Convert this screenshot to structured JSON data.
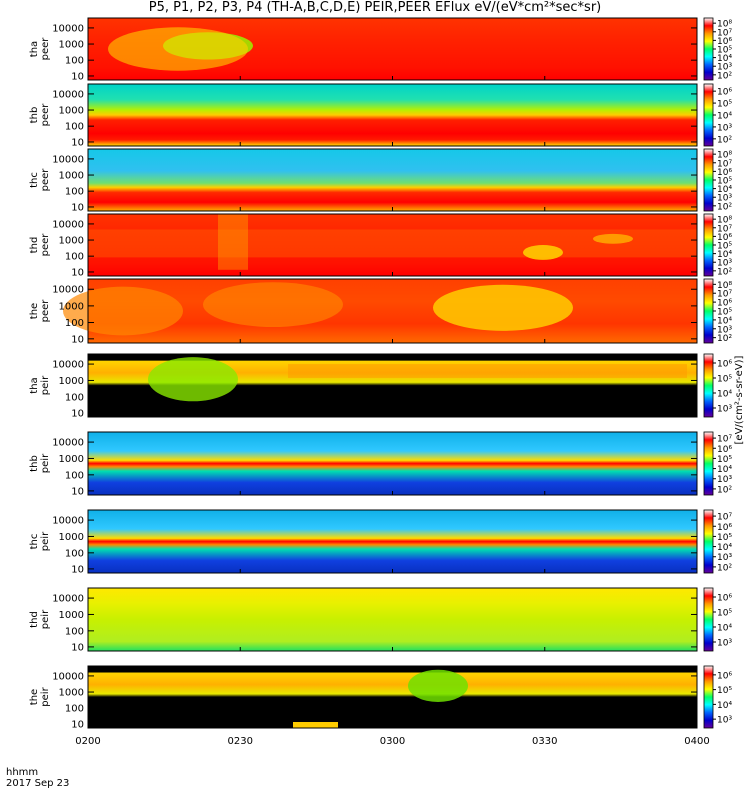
{
  "title": "P5, P1, P2, P3, P4 (TH-A,B,C,D,E) PEIR,PEER EFlux eV/(eV*cm²*sec*sr)",
  "footer": {
    "label": "hhmm",
    "date": "2017 Sep 23"
  },
  "colorbar_label": "[eV/(cm²-s-sr-eV)]",
  "colors": {
    "scale": [
      "#ffffff",
      "#ff0000",
      "#ff9900",
      "#ffff00",
      "#00ff66",
      "#00ffff",
      "#0066ff",
      "#0000cc",
      "#660099"
    ],
    "fill": "#000000"
  },
  "chart_data": {
    "type": "heatmap",
    "xlabel": "hhmm",
    "x_ticks": [
      "0200",
      "0230",
      "0300",
      "0330",
      "0400"
    ],
    "x_range": [
      "02:00",
      "04:00"
    ],
    "y_scale": "log",
    "y_ticks": [
      "10",
      "100",
      "1000",
      "10000"
    ],
    "ylim": [
      7,
      20000
    ],
    "colorbar_scale": "log",
    "panels": [
      {
        "name": "tha peer",
        "label_top": "tha",
        "label_bottom": "peer",
        "species": "electron",
        "cbar_ticks": [
          "10²",
          "10³",
          "10⁴",
          "10⁵",
          "10⁶",
          "10⁷",
          "10⁸"
        ],
        "style": "e-red",
        "feature": "green-blob"
      },
      {
        "name": "thb peer",
        "label_top": "thb",
        "label_bottom": "peer",
        "species": "electron",
        "cbar_ticks": [
          "10²",
          "10³",
          "10⁴",
          "10⁵",
          "10⁶"
        ],
        "style": "e-band",
        "feature": ""
      },
      {
        "name": "thc peer",
        "label_top": "thc",
        "label_bottom": "peer",
        "species": "electron",
        "cbar_ticks": [
          "10²",
          "10³",
          "10⁴",
          "10⁵",
          "10⁶",
          "10⁷",
          "10⁸"
        ],
        "style": "e-band2",
        "feature": ""
      },
      {
        "name": "thd peer",
        "label_top": "thd",
        "label_bottom": "peer",
        "species": "electron",
        "cbar_ticks": [
          "10²",
          "10³",
          "10⁴",
          "10⁵",
          "10⁶",
          "10⁷",
          "10⁸"
        ],
        "style": "e-red",
        "feature": "striations"
      },
      {
        "name": "the peer",
        "label_top": "the",
        "label_bottom": "peer",
        "species": "electron",
        "cbar_ticks": [
          "10²",
          "10³",
          "10⁴",
          "10⁵",
          "10⁶",
          "10⁷",
          "10⁸"
        ],
        "style": "e-orange",
        "feature": "yellow-blobs"
      },
      {
        "name": "tha peir",
        "label_top": "tha",
        "label_bottom": "peir",
        "species": "ion",
        "cbar_ticks": [
          "10³",
          "10⁴",
          "10⁵",
          "10⁶"
        ],
        "style": "i-black",
        "feature": "green-burst"
      },
      {
        "name": "thb peir",
        "label_top": "thb",
        "label_bottom": "peir",
        "species": "ion",
        "cbar_ticks": [
          "10²",
          "10³",
          "10⁴",
          "10⁵",
          "10⁶",
          "10⁷"
        ],
        "style": "i-band",
        "feature": ""
      },
      {
        "name": "thc peir",
        "label_top": "thc",
        "label_bottom": "peir",
        "species": "ion",
        "cbar_ticks": [
          "10²",
          "10³",
          "10⁴",
          "10⁵",
          "10⁶",
          "10⁷"
        ],
        "style": "i-band",
        "feature": ""
      },
      {
        "name": "thd peir",
        "label_top": "thd",
        "label_bottom": "peir",
        "species": "ion",
        "cbar_ticks": [
          "10³",
          "10⁴",
          "10⁵",
          "10⁶"
        ],
        "style": "i-green",
        "feature": ""
      },
      {
        "name": "the peir",
        "label_top": "the",
        "label_bottom": "peir",
        "species": "ion",
        "cbar_ticks": [
          "10³",
          "10⁴",
          "10⁵",
          "10⁶"
        ],
        "style": "i-black",
        "feature": "green-burst-late"
      }
    ]
  }
}
